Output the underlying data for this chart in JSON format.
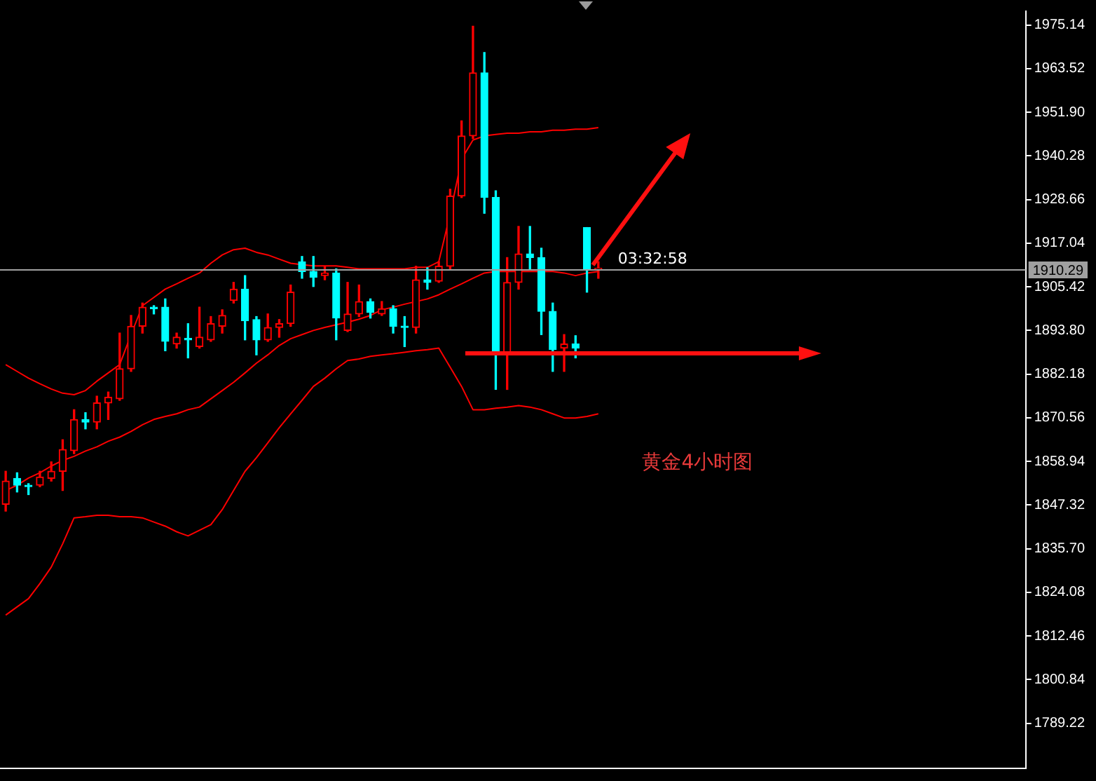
{
  "chart_data": {
    "type": "candlestick",
    "categories": [
      null,
      null,
      null,
      null,
      null,
      null,
      null,
      null,
      null,
      null,
      null,
      null,
      null,
      null,
      null,
      null,
      null,
      null,
      null,
      null,
      null,
      null,
      null,
      null,
      null,
      null,
      null,
      null,
      null,
      null,
      null,
      null,
      null,
      null,
      null,
      null,
      null,
      null,
      null,
      null,
      null,
      null,
      null,
      null,
      null,
      null,
      null,
      null,
      null,
      null,
      null,
      null,
      null,
      null,
      null,
      null,
      null,
      null,
      null,
      null,
      null,
      null,
      null,
      null,
      null,
      null,
      null,
      null,
      null,
      null,
      null,
      null,
      null,
      null,
      null,
      null,
      null,
      null,
      null,
      null,
      null,
      null,
      null,
      null,
      null,
      null,
      null,
      null,
      null,
      null
    ],
    "ohlc": [
      [
        1847.5,
        1856.3,
        1845.7,
        1853.7
      ],
      [
        1854.4,
        1855.9,
        1850.8,
        1852.6
      ],
      [
        1852.6,
        1853.0,
        1850.1,
        1852.2
      ],
      [
        1852.6,
        1856.3,
        1852.2,
        1854.8
      ],
      [
        1854.4,
        1858.8,
        1853.7,
        1856.3
      ],
      [
        1856.3,
        1864.7,
        1851.2,
        1862.1
      ],
      [
        1861.8,
        1872.7,
        1861.0,
        1870.1
      ],
      [
        1870.1,
        1871.9,
        1867.6,
        1869.4
      ],
      [
        1869.4,
        1876.3,
        1867.6,
        1874.5
      ],
      [
        1874.5,
        1877.4,
        1870.1,
        1876.0
      ],
      [
        1875.6,
        1893.1,
        1875.2,
        1883.6
      ],
      [
        1883.6,
        1897.8,
        1882.9,
        1894.9
      ],
      [
        1894.9,
        1901.1,
        1893.1,
        1900.0
      ],
      [
        1900.0,
        1900.4,
        1898.2,
        1899.6
      ],
      [
        1900.0,
        1902.2,
        1888.4,
        1890.9
      ],
      [
        1890.2,
        1893.1,
        1889.1,
        1892.0
      ],
      [
        1891.6,
        1895.6,
        1886.5,
        1891.3
      ],
      [
        1889.5,
        1900.0,
        1889.1,
        1892.0
      ],
      [
        1891.3,
        1897.5,
        1890.9,
        1895.6
      ],
      [
        1894.9,
        1899.3,
        1893.1,
        1897.8
      ],
      [
        1901.8,
        1906.6,
        1901.1,
        1904.8
      ],
      [
        1904.8,
        1908.4,
        1891.3,
        1896.4
      ],
      [
        1896.7,
        1897.5,
        1887.3,
        1891.3
      ],
      [
        1891.3,
        1898.2,
        1890.9,
        1894.6
      ],
      [
        1894.6,
        1896.7,
        1892.0,
        1895.6
      ],
      [
        1895.6,
        1905.9,
        1894.9,
        1904.0
      ],
      [
        1912.1,
        1913.5,
        1907.7,
        1909.5
      ],
      [
        1909.5,
        1913.5,
        1905.5,
        1908.0
      ],
      [
        1908.4,
        1910.9,
        1907.3,
        1909.1
      ],
      [
        1909.1,
        1910.2,
        1891.3,
        1897.1
      ],
      [
        1893.8,
        1906.6,
        1893.5,
        1898.2
      ],
      [
        1898.2,
        1905.9,
        1897.5,
        1901.5
      ],
      [
        1901.5,
        1902.2,
        1897.1,
        1898.6
      ],
      [
        1898.2,
        1901.5,
        1897.8,
        1899.6
      ],
      [
        1899.6,
        1900.4,
        1893.1,
        1894.9
      ],
      [
        1894.9,
        1897.5,
        1889.5,
        1894.6
      ],
      [
        1894.6,
        1910.9,
        1893.1,
        1907.3
      ],
      [
        1907.3,
        1910.5,
        1904.8,
        1906.6
      ],
      [
        1906.9,
        1912.1,
        1906.6,
        1910.9
      ],
      [
        1910.9,
        1931.4,
        1910.2,
        1929.6
      ],
      [
        1929.6,
        1949.6,
        1929.2,
        1945.6
      ],
      [
        1945.6,
        1974.8,
        1944.9,
        1962.4
      ],
      [
        1962.4,
        1967.8,
        1925.0,
        1929.2
      ],
      [
        1929.2,
        1931.0,
        1878.1,
        1888.4
      ],
      [
        1887.6,
        1913.2,
        1878.1,
        1906.6
      ],
      [
        1906.6,
        1921.5,
        1904.8,
        1914.2
      ],
      [
        1914.2,
        1921.5,
        1910.2,
        1913.2
      ],
      [
        1913.2,
        1915.7,
        1892.7,
        1898.9
      ],
      [
        1898.9,
        1901.1,
        1882.9,
        1888.7
      ],
      [
        1889.1,
        1892.7,
        1882.9,
        1890.2
      ],
      [
        1890.2,
        1892.4,
        1886.5,
        1889.1
      ],
      [
        1921.2,
        1921.2,
        1904.0,
        1910.2
      ],
      [
        1910.0,
        1912.1,
        1907.7,
        1910.29
      ],
      null,
      null,
      null,
      null,
      null,
      null,
      null,
      null,
      null,
      null,
      null,
      null,
      null,
      null,
      null,
      null,
      null,
      null,
      null,
      null,
      null,
      null,
      null,
      null,
      null,
      null,
      null,
      null,
      null,
      null,
      null,
      null,
      null,
      null,
      null,
      null,
      null
    ],
    "colors": [
      "#ff0000",
      "#00ffff",
      "#00ffff",
      "#ff0000",
      "#ff0000",
      "#ff0000",
      "#ff0000",
      "#00ffff",
      "#ff0000",
      "#ff0000",
      "#ff0000",
      "#ff0000",
      "#ff0000",
      "#00ffff",
      "#00ffff",
      "#ff0000",
      "#00ffff",
      "#ff0000",
      "#ff0000",
      "#ff0000",
      "#ff0000",
      "#00ffff",
      "#00ffff",
      "#ff0000",
      "#ff0000",
      "#ff0000",
      "#00ffff",
      "#00ffff",
      "#ff0000",
      "#00ffff",
      "#ff0000",
      "#ff0000",
      "#00ffff",
      "#ff0000",
      "#00ffff",
      "#00ffff",
      "#ff0000",
      "#00ffff",
      "#ff0000",
      "#ff0000",
      "#ff0000",
      "#ff0000",
      "#00ffff",
      "#00ffff",
      "#ff0000",
      "#ff0000",
      "#00ffff",
      "#00ffff",
      "#00ffff",
      "#ff0000",
      "#00ffff",
      "#00ffff",
      "#ff0000",
      null,
      null,
      null,
      null,
      null,
      null,
      null,
      null,
      null,
      null,
      null,
      null,
      null,
      null,
      null,
      null,
      null,
      null,
      null,
      null,
      null,
      null,
      null,
      null,
      null,
      null,
      null,
      null,
      null,
      null,
      null,
      null,
      null,
      null,
      null,
      null,
      null
    ],
    "series": [
      {
        "type": "line",
        "color": "#ff0000",
        "values": [
          1884.7,
          1882.9,
          1881.1,
          1879.6,
          1878.2,
          1877.1,
          1876.7,
          1877.8,
          1880.3,
          1882.5,
          1884.7,
          1892.7,
          1900.4,
          1902.6,
          1904.8,
          1906.2,
          1907.7,
          1909.1,
          1911.7,
          1913.9,
          1915.3,
          1915.7,
          1914.6,
          1913.9,
          1912.8,
          1911.7,
          1911.3,
          1911.0,
          1911.0,
          1911.0,
          1910.6,
          1910.2,
          1910.2,
          1910.2,
          1910.2,
          1910.2,
          1910.6,
          1910.6,
          1912.1,
          1924.8,
          1939.4,
          1944.5,
          1945.6,
          1946.0,
          1946.3,
          1946.3,
          1946.7,
          1946.7,
          1947.1,
          1947.1,
          1947.4,
          1947.4,
          1947.8,
          null,
          null,
          null,
          null,
          null,
          null,
          null,
          null,
          null,
          null,
          null,
          null,
          null,
          null,
          null,
          null,
          null,
          null,
          null,
          null,
          null,
          null,
          null,
          null,
          null,
          null,
          null,
          null,
          null,
          null,
          null,
          null,
          null,
          null,
          null,
          null,
          null
        ]
      },
      {
        "type": "line",
        "color": "#ff0000",
        "values": [
          1851.2,
          1852.6,
          1854.5,
          1855.9,
          1857.7,
          1859.2,
          1860.3,
          1861.7,
          1862.8,
          1864.3,
          1865.4,
          1866.9,
          1868.7,
          1870.1,
          1870.9,
          1871.6,
          1872.7,
          1873.4,
          1875.6,
          1877.8,
          1880.0,
          1882.5,
          1885.1,
          1887.3,
          1889.8,
          1891.6,
          1892.7,
          1893.8,
          1894.6,
          1895.3,
          1896.0,
          1896.8,
          1897.8,
          1899.3,
          1900.0,
          1900.8,
          1901.5,
          1902.2,
          1903.3,
          1904.8,
          1906.2,
          1907.7,
          1909.1,
          1909.5,
          1909.5,
          1909.5,
          1909.5,
          1909.5,
          1909.5,
          1909.1,
          1908.4,
          1909.1,
          1909.5,
          null,
          null,
          null,
          null,
          null,
          null,
          null,
          null,
          null,
          null,
          null,
          null,
          null,
          null,
          null,
          null,
          null,
          null,
          null,
          null,
          null,
          null,
          null,
          null,
          null,
          null,
          null,
          null,
          null,
          null,
          null,
          null,
          null,
          null,
          null,
          null,
          null
        ]
      },
      {
        "type": "line",
        "color": "#ff0000",
        "values": [
          1818.0,
          1820.2,
          1822.4,
          1826.4,
          1830.8,
          1837.0,
          1843.9,
          1844.2,
          1844.6,
          1844.6,
          1844.2,
          1844.2,
          1843.9,
          1842.8,
          1841.7,
          1840.2,
          1839.1,
          1840.6,
          1842.1,
          1846.1,
          1851.2,
          1856.3,
          1859.9,
          1863.9,
          1867.9,
          1871.6,
          1875.2,
          1878.9,
          1881.1,
          1883.6,
          1885.8,
          1886.2,
          1886.9,
          1887.3,
          1887.6,
          1888.0,
          1888.4,
          1888.7,
          1889.1,
          1884.0,
          1878.9,
          1872.7,
          1872.7,
          1873.1,
          1873.4,
          1873.8,
          1873.4,
          1872.7,
          1871.6,
          1870.5,
          1870.5,
          1870.9,
          1871.6,
          null,
          null,
          null,
          null,
          null,
          null,
          null,
          null,
          null,
          null,
          null,
          null,
          null,
          null,
          null,
          null,
          null,
          null,
          null,
          null,
          null,
          null,
          null,
          null,
          null,
          null,
          null,
          null,
          null,
          null,
          null,
          null,
          null,
          null,
          null,
          null,
          null
        ]
      }
    ],
    "ylim": [
      1777.2,
      1978.8
    ],
    "yticks": [
      1975.14,
      1963.52,
      {
        "value": 1951.9,
        "label": "1951.90"
      },
      1940.28,
      1928.66,
      1917.04,
      1905.42,
      {
        "value": 1893.8,
        "label": "1893.80"
      },
      1882.18,
      1870.56,
      1858.94,
      1847.32,
      {
        "value": 1835.7,
        "label": "1835.70"
      },
      1824.08,
      1812.46,
      1800.84,
      1789.22
    ],
    "ref_lines": [
      {
        "axis": "y",
        "value": 1910.29,
        "label": "1910.29",
        "color": "#a0a0a0"
      }
    ],
    "annotations": [
      "03:32:58",
      "黄金4小时图"
    ],
    "tick_labels": "y",
    "marker": "none",
    "legend": false,
    "grid": false
  }
}
